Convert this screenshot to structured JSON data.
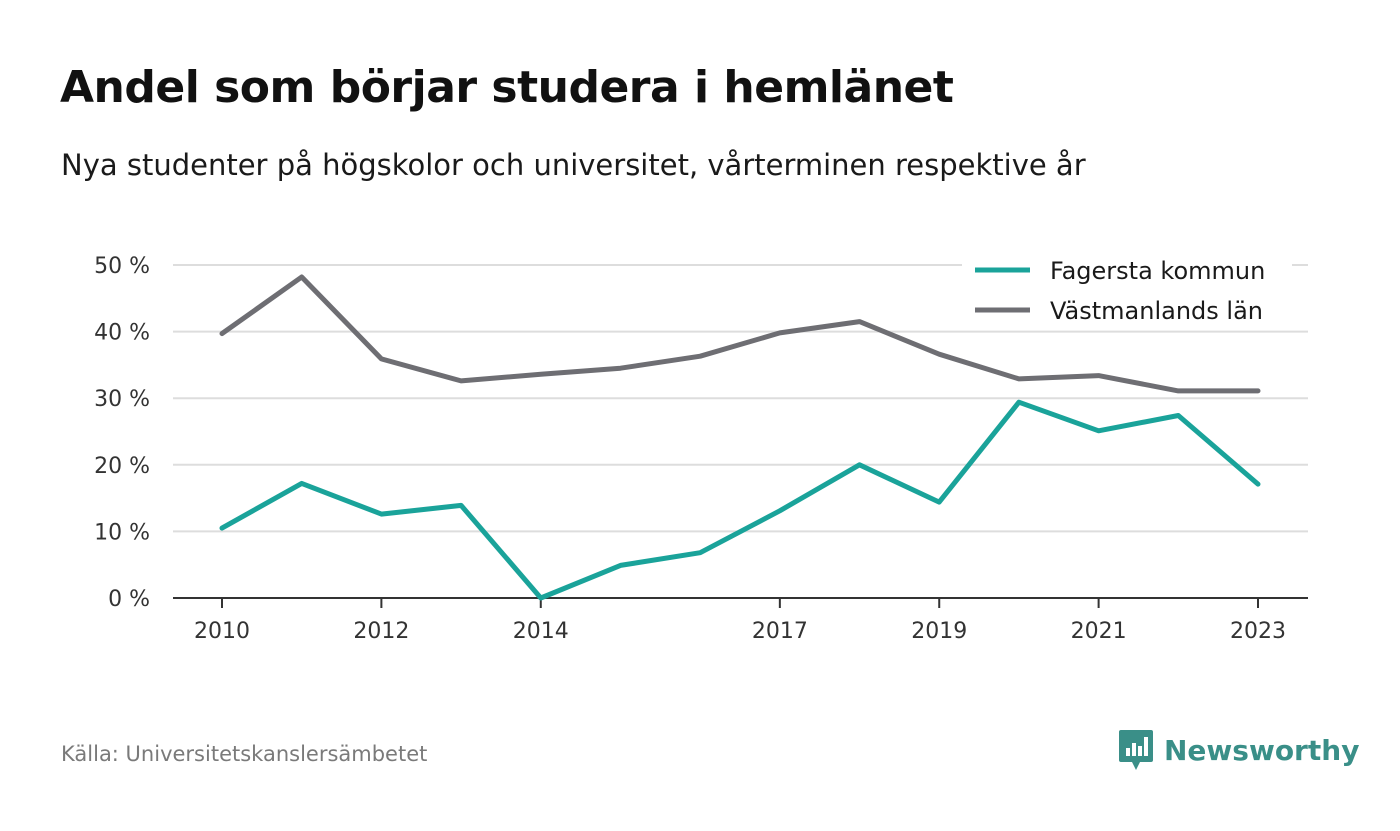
{
  "title": "Andel som börjar studera i hemlänet",
  "subtitle": "Nya studenter på högskolor och universitet, vårterminen respektive år",
  "source": "Källa: Universitetskanslersämbetet",
  "brand": {
    "name": "Newsworthy",
    "icon": "newsworthy-logo-icon",
    "color": "#3a8f88"
  },
  "chart_data": {
    "type": "line",
    "x": [
      2010,
      2011,
      2012,
      2013,
      2014,
      2015,
      2016,
      2017,
      2018,
      2019,
      2020,
      2021,
      2022,
      2023
    ],
    "x_tick_labels": [
      "2010",
      "2012",
      "2014",
      "2017",
      "2019",
      "2021",
      "2023"
    ],
    "y_tick_labels": [
      "0 %",
      "10 %",
      "20 %",
      "30 %",
      "40 %",
      "50 %"
    ],
    "ylim": [
      0,
      50
    ],
    "grid": true,
    "legend_position": "top-right",
    "series": [
      {
        "name": "Fagersta kommun",
        "color": "#1aa39a",
        "values": [
          10.5,
          17.2,
          12.6,
          13.9,
          0.0,
          4.9,
          6.8,
          13.1,
          20.0,
          14.4,
          29.4,
          25.1,
          27.4,
          17.1
        ]
      },
      {
        "name": "Västmanlands län",
        "color": "#6e6e73",
        "values": [
          39.7,
          48.2,
          35.9,
          32.6,
          33.6,
          34.5,
          36.3,
          39.8,
          41.5,
          36.6,
          32.9,
          33.4,
          31.1,
          31.1
        ]
      }
    ]
  }
}
